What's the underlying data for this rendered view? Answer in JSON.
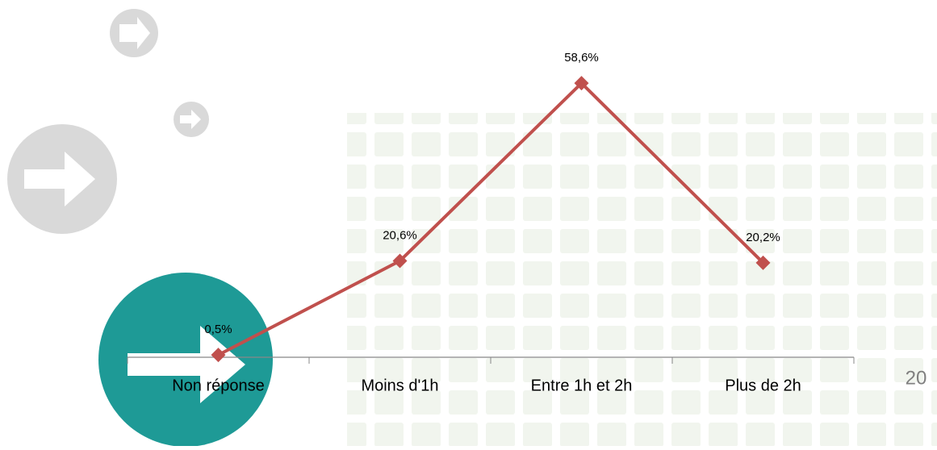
{
  "chart_data": {
    "type": "line",
    "categories": [
      "Non réponse",
      "Moins d'1h",
      "Entre 1h et 2h",
      "Plus de 2h"
    ],
    "values": [
      0.5,
      20.6,
      58.6,
      20.2
    ],
    "value_labels": [
      "0,5%",
      "20,6%",
      "58,6%",
      "20,2%"
    ],
    "color": "#c0504d",
    "ylim": [
      0,
      60
    ]
  },
  "page_number": "20"
}
